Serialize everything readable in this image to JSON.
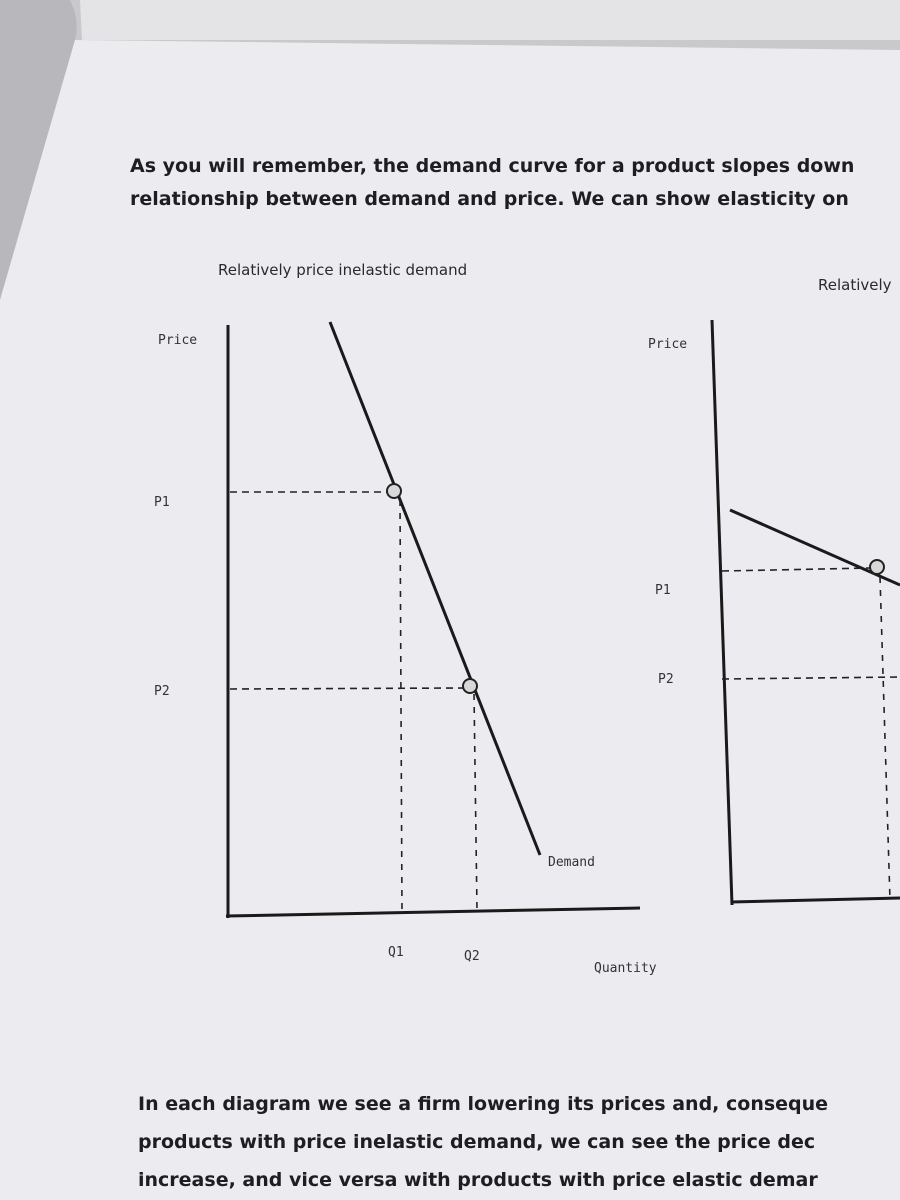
{
  "intro": {
    "lines": [
      "As you will remember, the demand curve for a product slopes down",
      "relationship between demand and price. We can show elasticity on"
    ]
  },
  "diagrams": [
    {
      "title": "Relatively price inelastic demand",
      "y_axis": "Price",
      "p1": "P1",
      "p2": "P2",
      "q1": "Q1",
      "q2": "Q2",
      "curve": "Demand",
      "x_axis": "Quantity"
    },
    {
      "title": "Relatively",
      "y_axis": "Price",
      "p1": "P1",
      "p2": "P2"
    }
  ],
  "outro": {
    "lines": [
      "In each diagram we see a firm lowering its prices and, conseque",
      "products with price inelastic demand, we can see the price dec",
      "increase, and vice versa with products with price elastic demar"
    ]
  }
}
